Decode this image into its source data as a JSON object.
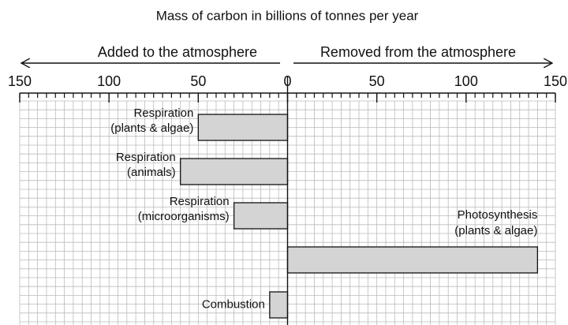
{
  "chart_data": {
    "type": "diverging_bar",
    "title": "Mass of carbon in billions of tonnes per year",
    "left_label": "Added to the atmosphere",
    "right_label": "Removed from the atmosphere",
    "categories": [
      [
        "Respiration",
        "(plants & algae)"
      ],
      [
        "Respiration",
        "(animals)"
      ],
      [
        "Respiration",
        "(microorganisms)"
      ],
      [
        "Photosynthesis",
        "(plants & algae)"
      ],
      [
        "Combustion"
      ]
    ],
    "values": [
      -50,
      -60,
      -30,
      140,
      -10
    ],
    "color": "#d4d4d4",
    "xlim": [
      -150,
      150
    ],
    "xticks": [
      {
        "value": -150,
        "label": "150"
      },
      {
        "value": -100,
        "label": "100"
      },
      {
        "value": -50,
        "label": "50"
      },
      0,
      50,
      100,
      150
    ],
    "grid": true
  }
}
